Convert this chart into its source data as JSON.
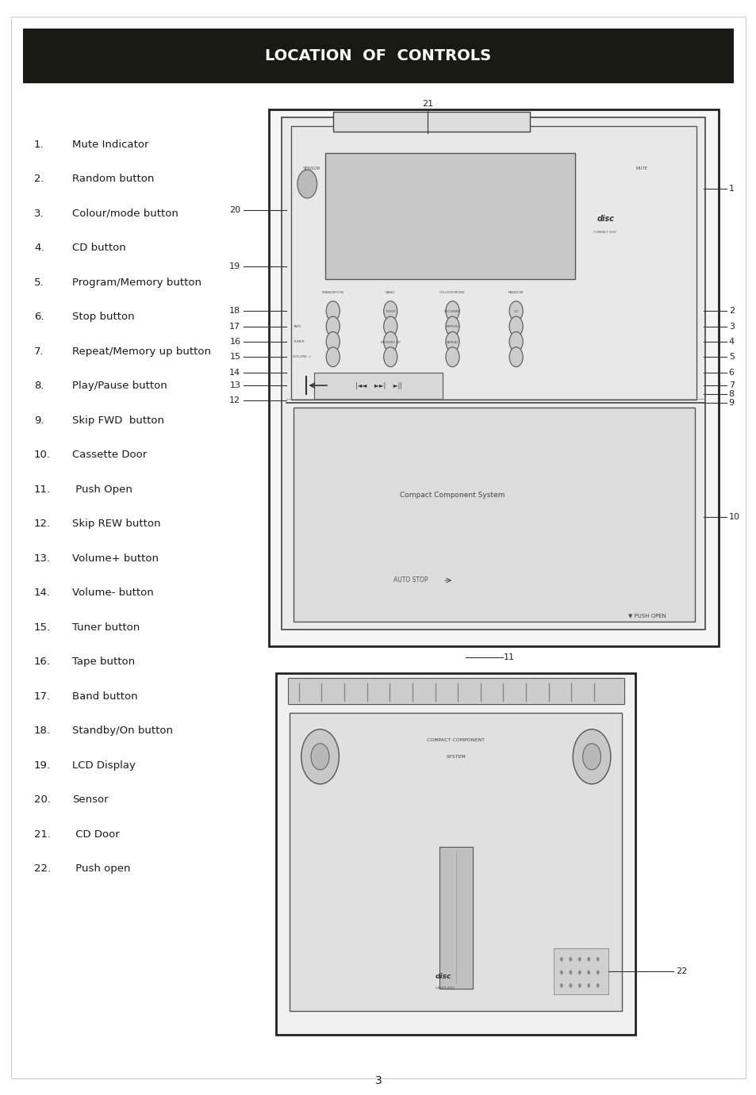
{
  "title": "LOCATION  OF  CONTROLS",
  "title_bg": "#1a1a14",
  "title_color": "#ffffff",
  "page_number": "3",
  "bg_color": "#ffffff",
  "text_color": "#1a1a1a",
  "items": [
    [
      "1.",
      "Mute Indicator"
    ],
    [
      "2.",
      "Random button"
    ],
    [
      "3.",
      "Colour/mode button"
    ],
    [
      "4.",
      "CD button"
    ],
    [
      "5.",
      "Program/Memory button"
    ],
    [
      "6.",
      "Stop button"
    ],
    [
      "7.",
      "Repeat/Memory up button"
    ],
    [
      "8.",
      "Play/Pause button"
    ],
    [
      "9.",
      "Skip FWD  button"
    ],
    [
      "10.",
      "Cassette Door"
    ],
    [
      "11.",
      " Push Open"
    ],
    [
      "12.",
      "Skip REW button"
    ],
    [
      "13.",
      "Volume+ button"
    ],
    [
      "14.",
      "Volume- button"
    ],
    [
      "15.",
      "Tuner button"
    ],
    [
      "16.",
      "Tape button"
    ],
    [
      "17.",
      "Band button"
    ],
    [
      "18.",
      "Standby/On button"
    ],
    [
      "19.",
      "LCD Display"
    ],
    [
      "20.",
      "Sensor"
    ],
    [
      "21.",
      " CD Door"
    ],
    [
      "22.",
      " Push open"
    ]
  ],
  "right_callouts": [
    [
      0.828,
      "1"
    ],
    [
      0.716,
      "2"
    ],
    [
      0.702,
      "3"
    ],
    [
      0.688,
      "4"
    ],
    [
      0.674,
      "5"
    ],
    [
      0.66,
      "6"
    ],
    [
      0.648,
      "7"
    ],
    [
      0.64,
      "8"
    ],
    [
      0.632,
      "9"
    ],
    [
      0.528,
      "10"
    ]
  ],
  "left_callouts": [
    [
      0.716,
      "18"
    ],
    [
      0.702,
      "17"
    ],
    [
      0.688,
      "16"
    ],
    [
      0.674,
      "15"
    ],
    [
      0.66,
      "14"
    ],
    [
      0.648,
      "13"
    ],
    [
      0.634,
      "12"
    ],
    [
      0.757,
      "19"
    ],
    [
      0.808,
      "20"
    ]
  ]
}
